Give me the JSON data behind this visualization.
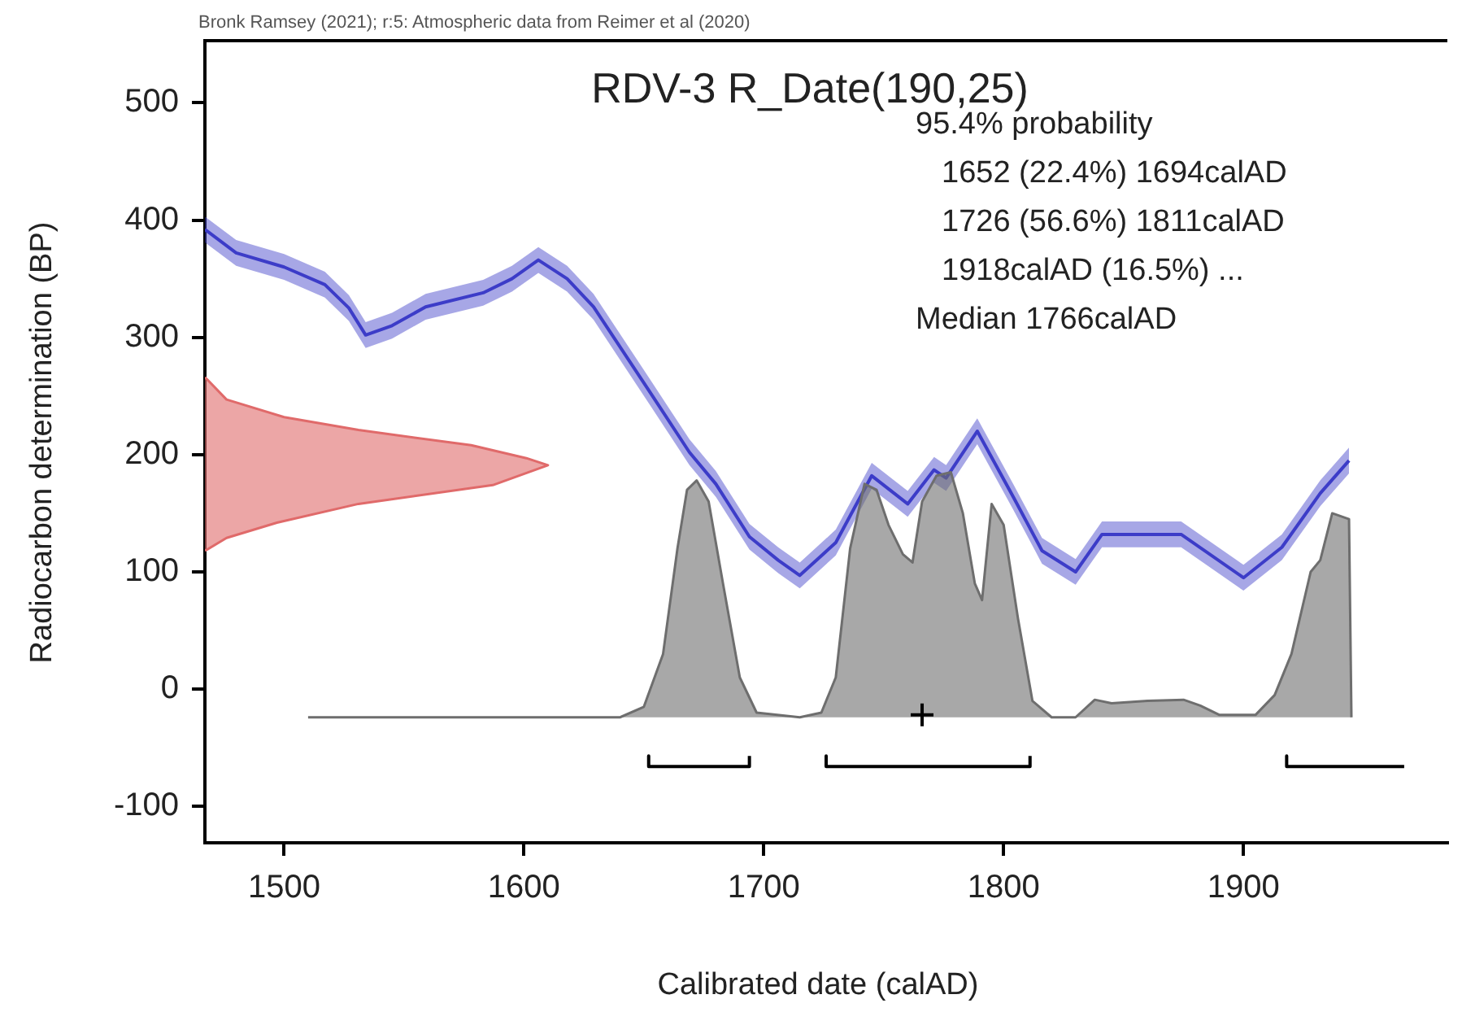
{
  "chart_data": {
    "type": "line",
    "title": "RDV-3 R_Date(190,25)",
    "xlabel": "Calibrated date (calAD)",
    "ylabel": "Radiocarbon determination (BP)",
    "annotations": [
      "Bronk Ramsey (2021); r:5: Atmospheric data from Reimer et al (2020)",
      "95.4% probability",
      "1652 (22.4%) 1694calAD",
      "1726 (56.6%) 1811calAD",
      "1918calAD (16.5%) ...",
      "Median 1766calAD"
    ],
    "xlim": [
      1467,
      1985
    ],
    "xticks": [
      1500,
      1600,
      1700,
      1800,
      1900
    ],
    "ylim": [
      -131,
      553
    ],
    "yticks": [
      -100,
      0,
      100,
      200,
      300,
      400,
      500
    ],
    "grid": false,
    "legend": false,
    "series": [
      {
        "type": "line",
        "color": "#3c3cc8",
        "x": [
          1467,
          1480,
          1500,
          1517,
          1527,
          1534,
          1545,
          1559,
          1583,
          1595,
          1606,
          1618,
          1629,
          1652,
          1669,
          1680,
          1694,
          1706,
          1715,
          1730,
          1745,
          1760,
          1771,
          1776,
          1789,
          1804,
          1816,
          1830,
          1841,
          1874,
          1900,
          1916,
          1932,
          1944
        ],
        "values": [
          392,
          372,
          360,
          345,
          325,
          302,
          310,
          326,
          338,
          350,
          366,
          350,
          326,
          255,
          202,
          175,
          130,
          110,
          97,
          125,
          182,
          158,
          187,
          180,
          220,
          164,
          118,
          100,
          132,
          132,
          95,
          121,
          167,
          195
        ],
        "lower": [
          381,
          361,
          349,
          334,
          314,
          291,
          299,
          315,
          327,
          339,
          355,
          339,
          315,
          244,
          191,
          164,
          119,
          99,
          86,
          114,
          171,
          147,
          176,
          169,
          209,
          153,
          107,
          89,
          121,
          121,
          84,
          110,
          156,
          184
        ],
        "upper": [
          403,
          383,
          371,
          356,
          336,
          313,
          321,
          337,
          349,
          361,
          377,
          361,
          337,
          266,
          213,
          186,
          141,
          121,
          108,
          136,
          193,
          169,
          198,
          191,
          231,
          175,
          129,
          111,
          143,
          143,
          106,
          132,
          178,
          206
        ]
      },
      {
        "type": "area",
        "color": "#e06a6a",
        "x": [
          1467,
          1476,
          1500,
          1531,
          1578,
          1601,
          1610,
          1587,
          1531,
          1497,
          1476,
          1467
        ],
        "values": [
          266,
          247,
          232,
          221,
          208,
          197,
          191,
          174,
          158,
          142,
          129,
          118
        ]
      },
      {
        "type": "area",
        "color": "#6e6e6e",
        "x": [
          1510,
          1640,
          1650,
          1658,
          1664,
          1668,
          1672,
          1677,
          1683,
          1690,
          1697,
          1715,
          1724,
          1730,
          1736,
          1742,
          1747,
          1752,
          1758,
          1762,
          1766,
          1772,
          1778,
          1783,
          1788,
          1791,
          1795,
          1800,
          1806,
          1812,
          1820,
          1830,
          1838,
          1845,
          1860,
          1875,
          1882,
          1890,
          1905,
          1913,
          1920,
          1928,
          1932,
          1937,
          1944,
          1945
        ],
        "values": [
          -24,
          -24,
          -15,
          30,
          120,
          170,
          178,
          160,
          90,
          10,
          -20,
          -24,
          -20,
          10,
          120,
          175,
          170,
          140,
          115,
          108,
          160,
          182,
          185,
          150,
          90,
          76,
          158,
          140,
          60,
          -10,
          -24,
          -24,
          -9,
          -12,
          -10,
          -9,
          -14,
          -22,
          -22,
          -5,
          30,
          100,
          110,
          150,
          145,
          -24
        ]
      },
      {
        "type": "line",
        "color": "#000000",
        "x": [
          1652,
          1652,
          1694,
          1694,
          1710,
          1726,
          1726,
          1811,
          1811,
          1860,
          1918,
          1918,
          1967
        ],
        "values": [
          -57,
          -66,
          -66,
          -57,
          null,
          -57,
          -66,
          -66,
          -57,
          null,
          -57,
          -66,
          -66
        ]
      },
      {
        "type": "scatter",
        "color": "#000000",
        "marker": "cross",
        "x": [
          1766
        ],
        "values": [
          -22
        ]
      }
    ]
  }
}
